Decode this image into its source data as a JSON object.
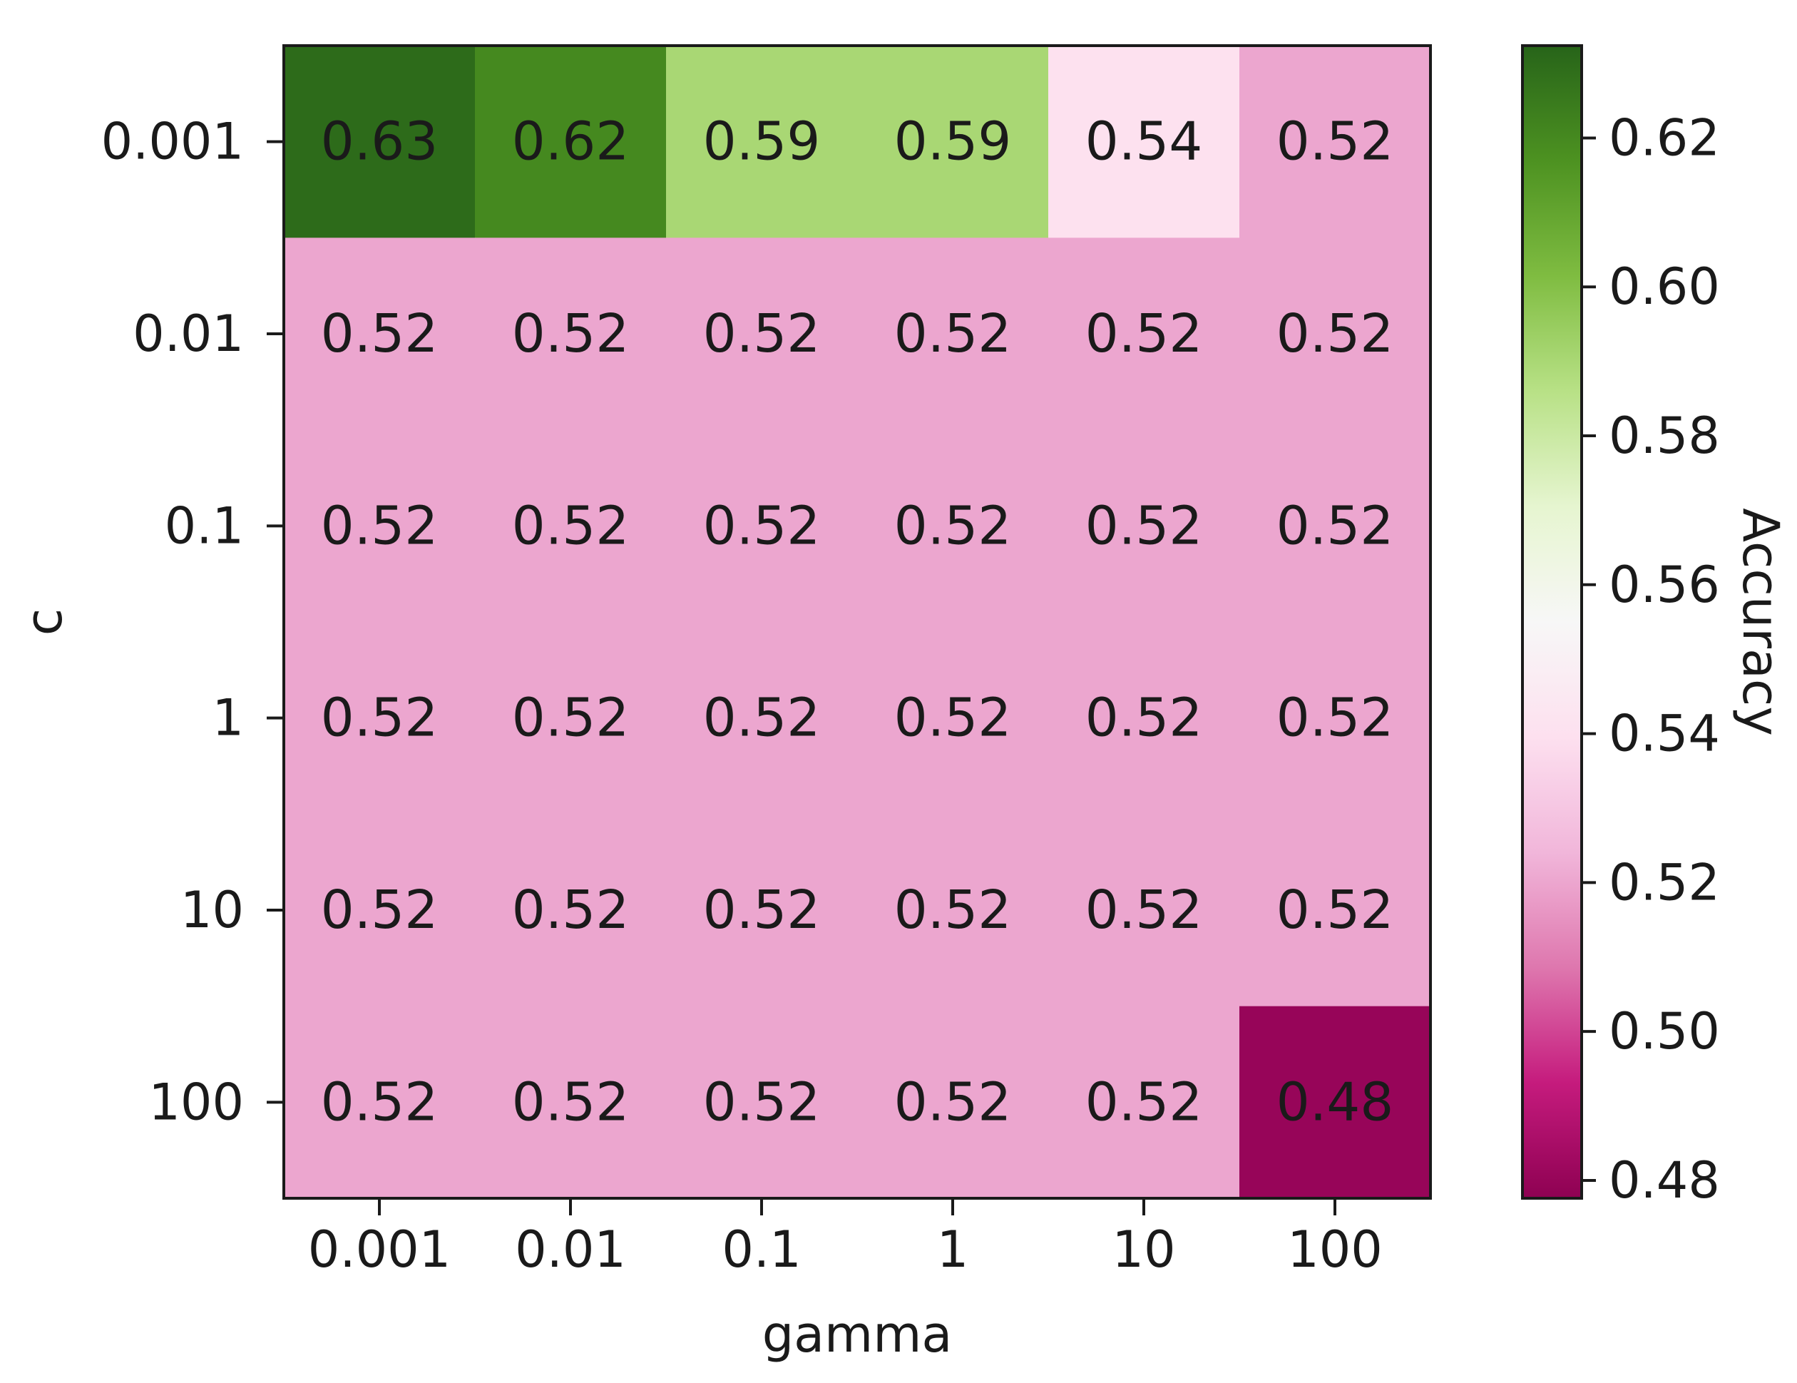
{
  "chart_data": {
    "type": "heatmap",
    "xlabel": "gamma",
    "ylabel": "c",
    "x_categories": [
      "0.001",
      "0.01",
      "0.1",
      "1",
      "10",
      "100"
    ],
    "y_categories": [
      "0.001",
      "0.01",
      "0.1",
      "1",
      "10",
      "100"
    ],
    "values": [
      [
        0.63,
        0.62,
        0.59,
        0.59,
        0.54,
        0.52
      ],
      [
        0.52,
        0.52,
        0.52,
        0.52,
        0.52,
        0.52
      ],
      [
        0.52,
        0.52,
        0.52,
        0.52,
        0.52,
        0.52
      ],
      [
        0.52,
        0.52,
        0.52,
        0.52,
        0.52,
        0.52
      ],
      [
        0.52,
        0.52,
        0.52,
        0.52,
        0.52,
        0.52
      ],
      [
        0.52,
        0.52,
        0.52,
        0.52,
        0.52,
        0.48
      ]
    ],
    "value_labels": [
      [
        "0.63",
        "0.62",
        "0.59",
        "0.59",
        "0.54",
        "0.52"
      ],
      [
        "0.52",
        "0.52",
        "0.52",
        "0.52",
        "0.52",
        "0.52"
      ],
      [
        "0.52",
        "0.52",
        "0.52",
        "0.52",
        "0.52",
        "0.52"
      ],
      [
        "0.52",
        "0.52",
        "0.52",
        "0.52",
        "0.52",
        "0.52"
      ],
      [
        "0.52",
        "0.52",
        "0.52",
        "0.52",
        "0.52",
        "0.52"
      ],
      [
        "0.52",
        "0.52",
        "0.52",
        "0.52",
        "0.52",
        "0.48"
      ]
    ],
    "colorbar": {
      "label": "Accuracy",
      "colormap": "PiYG",
      "range": [
        0.4776,
        0.6324
      ],
      "ticks": [
        0.48,
        0.5,
        0.52,
        0.54,
        0.56,
        0.58,
        0.6,
        0.62
      ],
      "tick_labels": [
        "0.48",
        "0.50",
        "0.52",
        "0.54",
        "0.56",
        "0.58",
        "0.60",
        "0.62"
      ]
    },
    "grid": false
  }
}
